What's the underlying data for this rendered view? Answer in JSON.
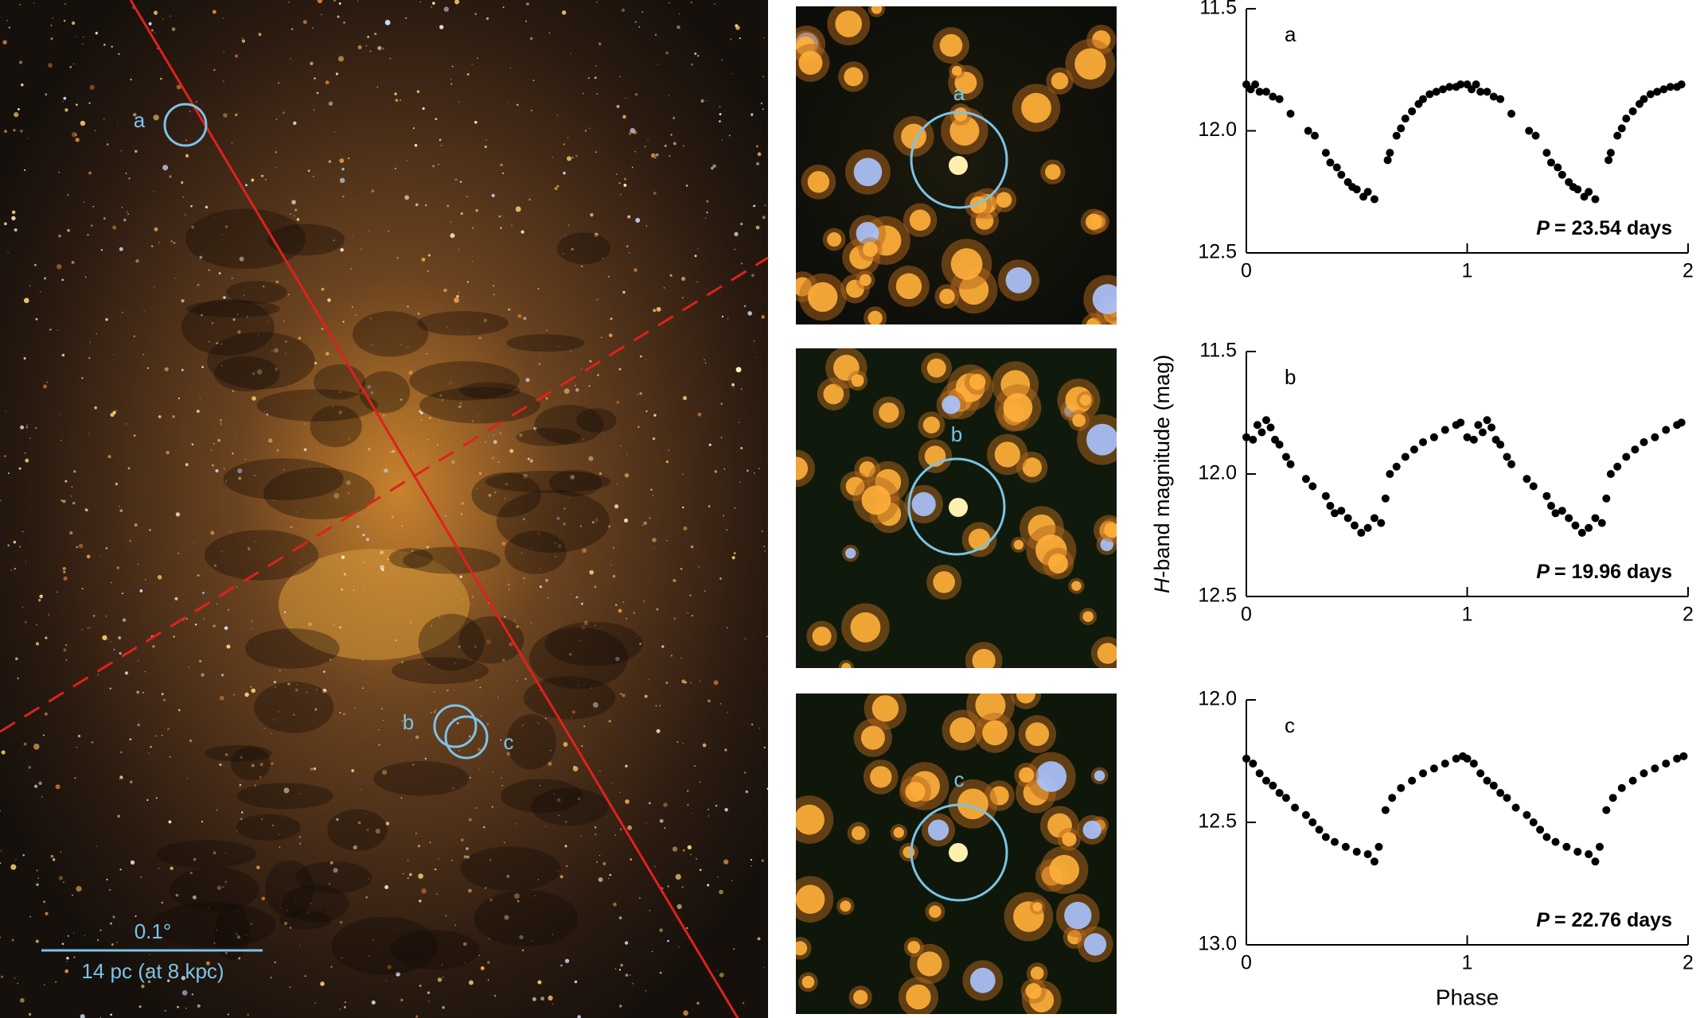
{
  "image_panel": {
    "field_labels": [
      "a",
      "b",
      "c"
    ],
    "scale_angle": "0.1°",
    "scale_distance": "14 pc (at 8 kpc)"
  },
  "zoom_labels": [
    "a",
    "b",
    "c"
  ],
  "chart_data": [
    {
      "type": "scatter",
      "panel_label": "a",
      "annotation_var": "P",
      "annotation": "= 23.54 days",
      "color": "#000000",
      "xlim": [
        0,
        2
      ],
      "xticks": [
        0,
        1,
        2
      ],
      "ylim": [
        11.5,
        12.5
      ],
      "y_inverted": true,
      "yticks": [
        11.5,
        {
          "value": 12,
          "label": "12.0"
        },
        12.5
      ],
      "x": [
        0,
        0.02,
        0.04,
        0.06,
        0.09,
        0.12,
        0.15,
        0.2,
        0.28,
        0.31,
        0.36,
        0.38,
        0.41,
        0.43,
        0.46,
        0.48,
        0.5,
        0.53,
        0.55,
        0.58,
        0.64,
        0.65,
        0.68,
        0.7,
        0.72,
        0.75,
        0.78,
        0.8,
        0.83,
        0.86,
        0.89,
        0.92,
        0.95,
        0.97,
        1,
        1.02,
        1.04,
        1.06,
        1.09,
        1.12,
        1.15,
        1.2,
        1.28,
        1.31,
        1.36,
        1.38,
        1.41,
        1.43,
        1.46,
        1.48,
        1.5,
        1.53,
        1.55,
        1.58,
        1.64,
        1.65,
        1.68,
        1.7,
        1.72,
        1.75,
        1.78,
        1.8,
        1.83,
        1.86,
        1.89,
        1.92,
        1.95,
        1.97
      ],
      "values": [
        11.81,
        11.83,
        11.81,
        11.84,
        11.84,
        11.86,
        11.87,
        11.93,
        12,
        12.02,
        12.09,
        12.13,
        12.15,
        12.18,
        12.21,
        12.23,
        12.24,
        12.27,
        12.25,
        12.28,
        12.12,
        12.09,
        12.02,
        11.99,
        11.95,
        11.92,
        11.89,
        11.87,
        11.85,
        11.84,
        11.83,
        11.82,
        11.82,
        11.81,
        11.81,
        11.83,
        11.81,
        11.84,
        11.84,
        11.86,
        11.87,
        11.93,
        12,
        12.02,
        12.09,
        12.13,
        12.15,
        12.18,
        12.21,
        12.23,
        12.24,
        12.27,
        12.25,
        12.28,
        12.12,
        12.09,
        12.02,
        11.99,
        11.95,
        11.92,
        11.89,
        11.87,
        11.85,
        11.84,
        11.83,
        11.82,
        11.82,
        11.81
      ]
    },
    {
      "type": "scatter",
      "panel_label": "b",
      "annotation_var": "P",
      "annotation": "= 19.96 days",
      "color": "#000000",
      "ylabel_var": "H",
      "ylabel": "-band magnitude (mag)",
      "xlim": [
        0,
        2
      ],
      "xticks": [
        0,
        1,
        2
      ],
      "ylim": [
        11.5,
        12.5
      ],
      "y_inverted": true,
      "yticks": [
        11.5,
        {
          "value": 12,
          "label": "12.0"
        },
        12.5
      ],
      "x": [
        0,
        0.03,
        0.05,
        0.07,
        0.09,
        0.11,
        0.13,
        0.15,
        0.18,
        0.2,
        0.27,
        0.3,
        0.36,
        0.38,
        0.4,
        0.43,
        0.46,
        0.49,
        0.52,
        0.55,
        0.58,
        0.61,
        0.63,
        0.65,
        0.68,
        0.72,
        0.76,
        0.8,
        0.85,
        0.9,
        0.95,
        0.97,
        1,
        1.03,
        1.05,
        1.07,
        1.09,
        1.11,
        1.13,
        1.15,
        1.18,
        1.2,
        1.27,
        1.3,
        1.36,
        1.38,
        1.4,
        1.43,
        1.46,
        1.49,
        1.52,
        1.55,
        1.58,
        1.61,
        1.63,
        1.65,
        1.68,
        1.72,
        1.76,
        1.8,
        1.85,
        1.9,
        1.95,
        1.97
      ],
      "values": [
        11.85,
        11.86,
        11.8,
        11.83,
        11.78,
        11.81,
        11.86,
        11.88,
        11.93,
        11.96,
        12.02,
        12.05,
        12.09,
        12.13,
        12.16,
        12.15,
        12.18,
        12.21,
        12.24,
        12.22,
        12.18,
        12.2,
        12.1,
        12,
        11.97,
        11.93,
        11.9,
        11.87,
        11.85,
        11.82,
        11.8,
        11.79,
        11.85,
        11.86,
        11.8,
        11.83,
        11.78,
        11.81,
        11.86,
        11.88,
        11.93,
        11.96,
        12.02,
        12.05,
        12.09,
        12.13,
        12.16,
        12.15,
        12.18,
        12.21,
        12.24,
        12.22,
        12.18,
        12.2,
        12.1,
        12,
        11.97,
        11.93,
        11.9,
        11.87,
        11.85,
        11.82,
        11.8,
        11.79
      ]
    },
    {
      "type": "scatter",
      "panel_label": "c",
      "annotation_var": "P",
      "annotation": "= 22.76 days",
      "color": "#000000",
      "xlabel": "Phase",
      "xlim": [
        0,
        2
      ],
      "xticks": [
        0,
        1,
        2
      ],
      "ylim": [
        12,
        13
      ],
      "y_inverted": true,
      "yticks": [
        {
          "value": 12,
          "label": "12.0"
        },
        12.5,
        {
          "value": 13,
          "label": "13.0"
        }
      ],
      "x": [
        0,
        0.03,
        0.06,
        0.09,
        0.12,
        0.15,
        0.18,
        0.22,
        0.27,
        0.3,
        0.33,
        0.36,
        0.4,
        0.45,
        0.5,
        0.55,
        0.58,
        0.6,
        0.63,
        0.66,
        0.7,
        0.75,
        0.8,
        0.85,
        0.9,
        0.95,
        0.98,
        1,
        1.03,
        1.06,
        1.09,
        1.12,
        1.15,
        1.18,
        1.22,
        1.27,
        1.3,
        1.33,
        1.36,
        1.4,
        1.45,
        1.5,
        1.55,
        1.58,
        1.6,
        1.63,
        1.66,
        1.7,
        1.75,
        1.8,
        1.85,
        1.9,
        1.95,
        1.98
      ],
      "values": [
        12.24,
        12.26,
        12.3,
        12.33,
        12.35,
        12.38,
        12.4,
        12.44,
        12.47,
        12.5,
        12.53,
        12.56,
        12.58,
        12.6,
        12.62,
        12.63,
        12.66,
        12.6,
        12.45,
        12.4,
        12.36,
        12.33,
        12.3,
        12.28,
        12.26,
        12.24,
        12.23,
        12.24,
        12.26,
        12.3,
        12.33,
        12.35,
        12.38,
        12.4,
        12.44,
        12.47,
        12.5,
        12.53,
        12.56,
        12.58,
        12.6,
        12.62,
        12.63,
        12.66,
        12.6,
        12.45,
        12.4,
        12.36,
        12.33,
        12.3,
        12.28,
        12.26,
        12.24,
        12.23
      ]
    }
  ]
}
